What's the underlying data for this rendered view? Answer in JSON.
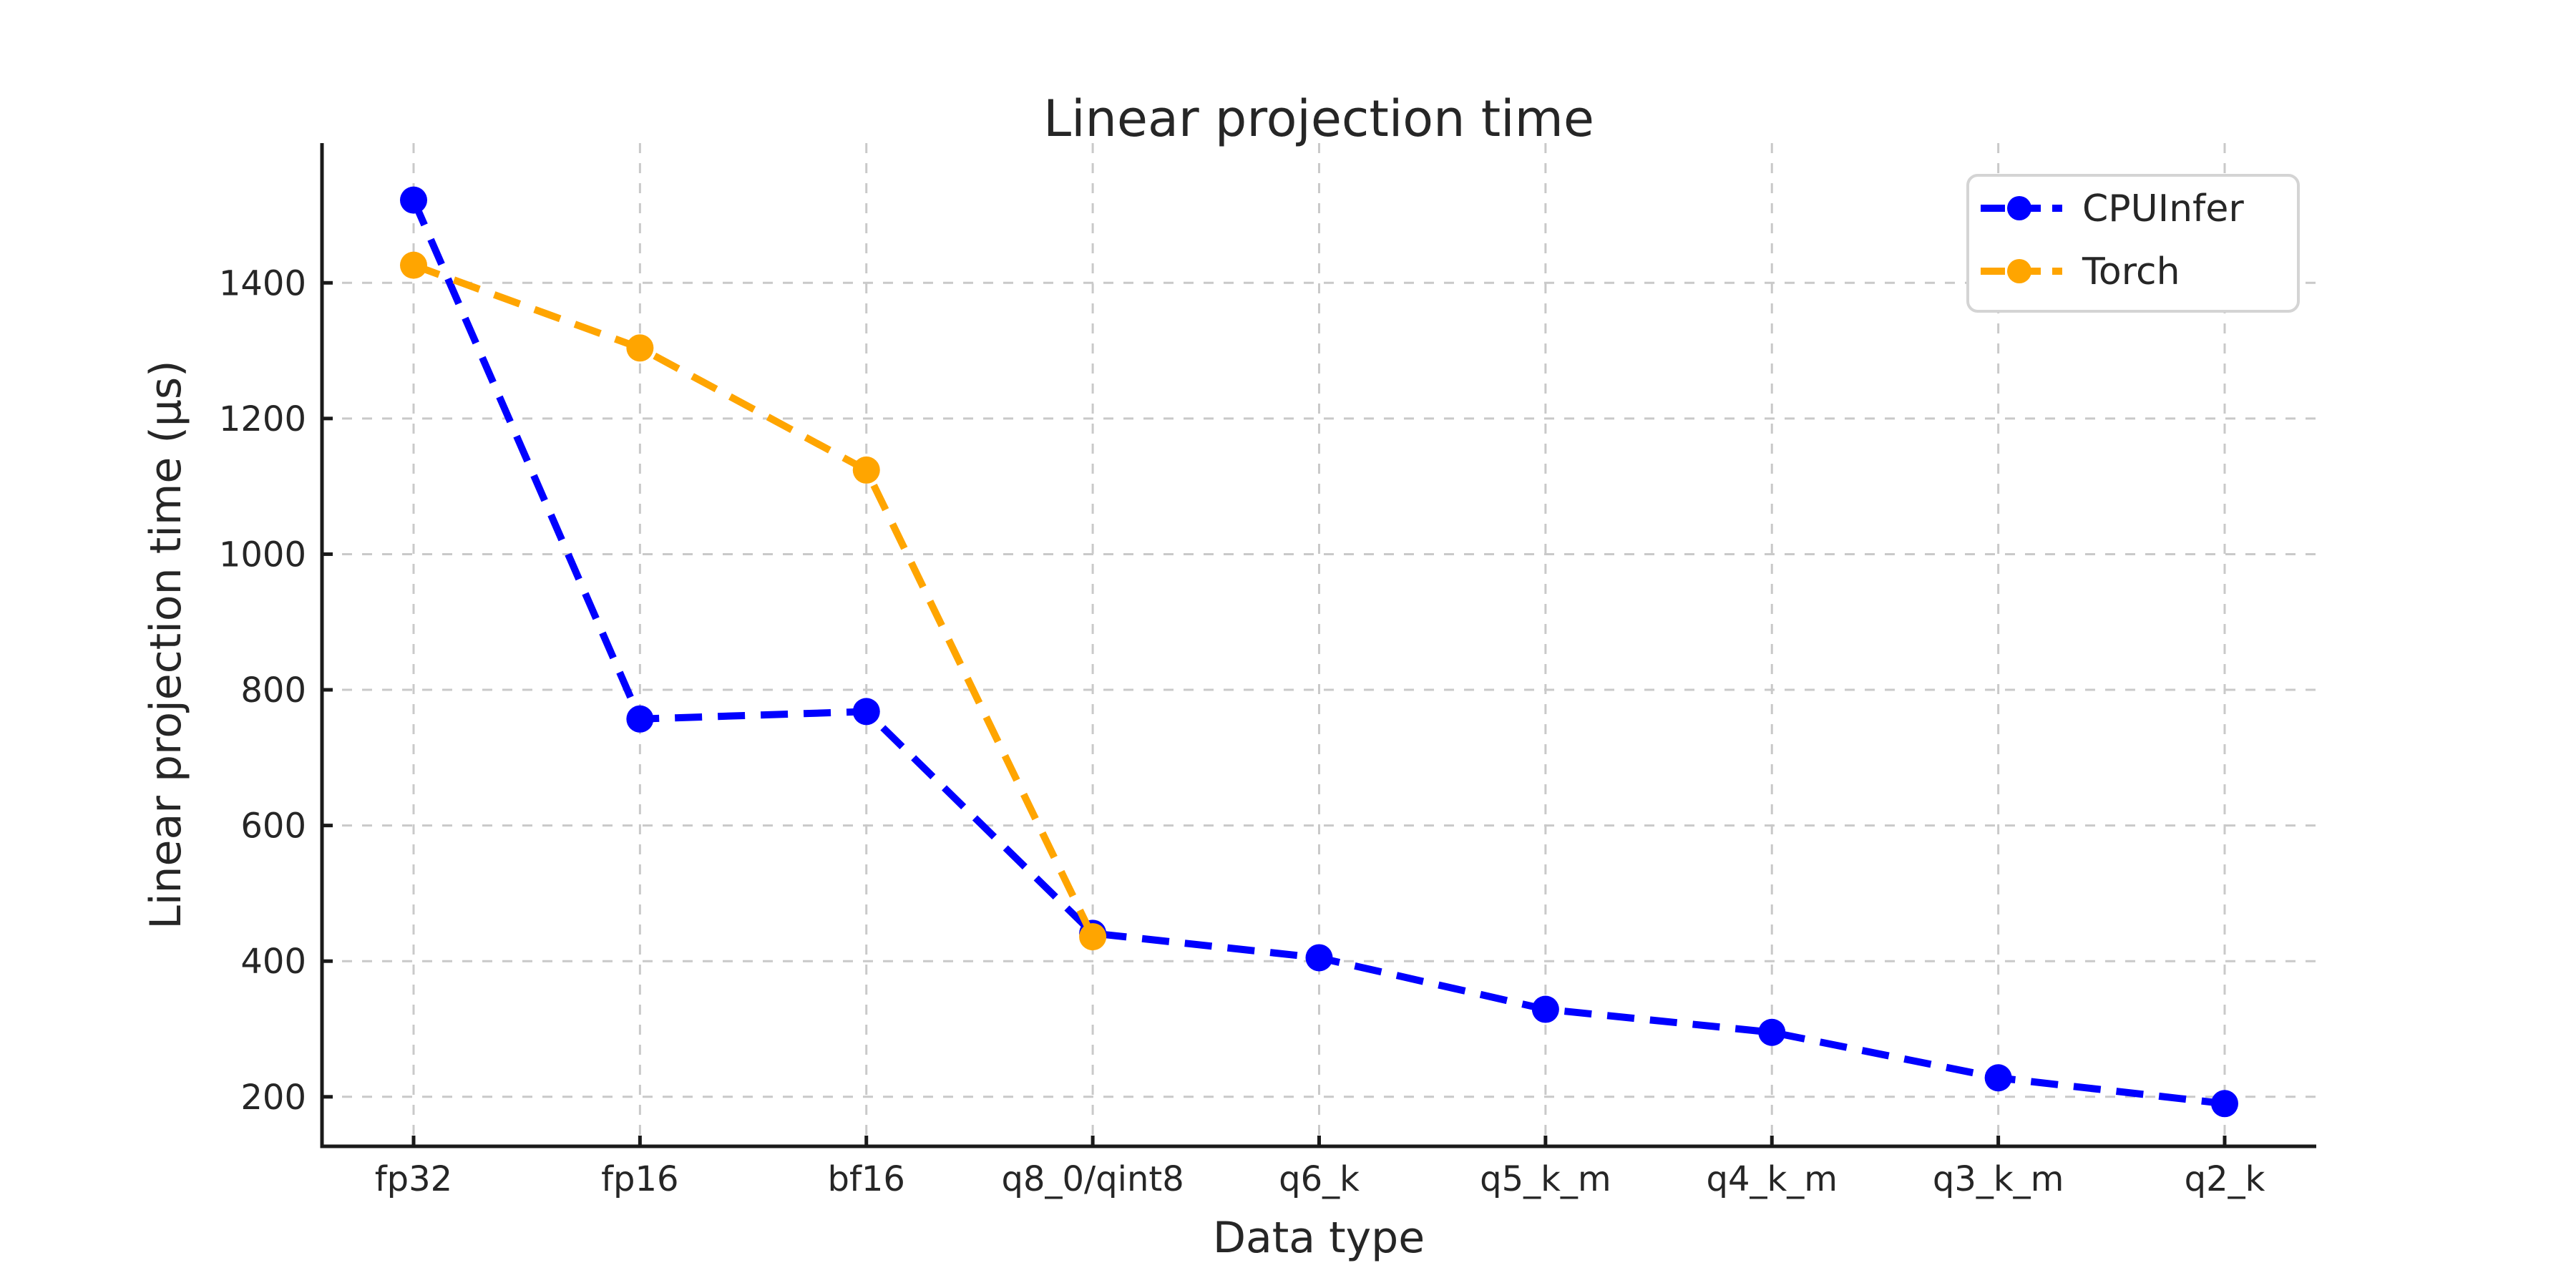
{
  "chart_data": {
    "type": "line",
    "title": "Linear projection time",
    "xlabel": "Data type",
    "ylabel": "Linear projection time (µs)",
    "categories": [
      "fp32",
      "fp16",
      "bf16",
      "q8_0/qint8",
      "q6_k",
      "q5_k_m",
      "q4_k_m",
      "q3_k_m",
      "q2_k"
    ],
    "series": [
      {
        "name": "CPUInfer",
        "color": "#0000ff",
        "values": [
          1522,
          757,
          768,
          441,
          405,
          329,
          295,
          228,
          190
        ]
      },
      {
        "name": "Torch",
        "color": "#ffa500",
        "values": [
          1426,
          1304,
          1124,
          436,
          null,
          null,
          null,
          null,
          null
        ]
      }
    ],
    "yticks": [
      200,
      400,
      600,
      800,
      1000,
      1200,
      1400
    ],
    "ylim": [
      127,
      1606
    ],
    "grid": true,
    "grid_style": "dashed",
    "line_style": "dashed",
    "marker": "circle",
    "legend_position": "upper right",
    "legend_labels": [
      "CPUInfer",
      "Torch"
    ]
  },
  "colors": {
    "background": "#ffffff",
    "grid": "#c9c9c9",
    "spine": "#1a1a1a",
    "text": "#262626",
    "legend_border": "#d4d4d4"
  }
}
